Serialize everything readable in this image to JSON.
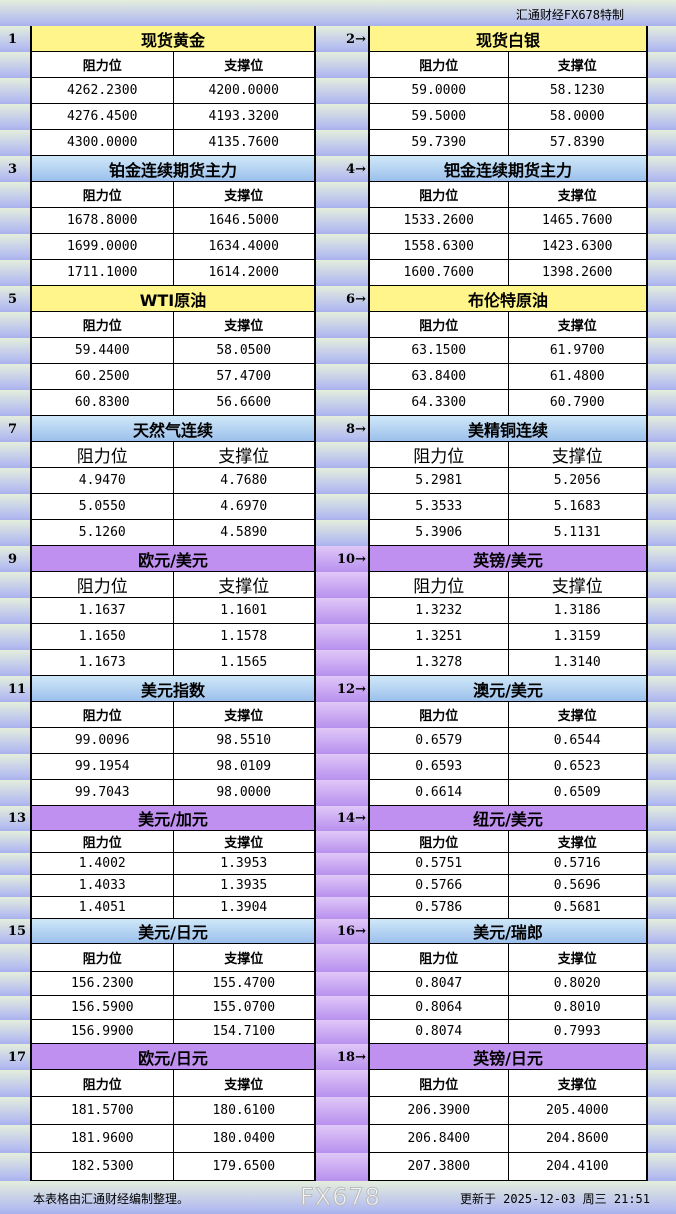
{
  "header": {
    "brand": "汇通财经FX678特制"
  },
  "labels": {
    "resistance": "阻力位",
    "support": "支撑位"
  },
  "sections": [
    {
      "color": "yellow",
      "left": {
        "num": "1",
        "title": "现货黄金",
        "rows": [
          [
            "4262.2300",
            "4200.0000"
          ],
          [
            "4276.4500",
            "4193.3200"
          ],
          [
            "4300.0000",
            "4135.7600"
          ]
        ]
      },
      "right": {
        "num": "2→",
        "title": "现货白银",
        "rows": [
          [
            "59.0000",
            "58.1230"
          ],
          [
            "59.5000",
            "58.0000"
          ],
          [
            "59.7390",
            "57.8390"
          ]
        ]
      }
    },
    {
      "color": "blue",
      "left": {
        "num": "3",
        "title": "铂金连续期货主力",
        "rows": [
          [
            "1678.8000",
            "1646.5000"
          ],
          [
            "1699.0000",
            "1634.4000"
          ],
          [
            "1711.1000",
            "1614.2000"
          ]
        ]
      },
      "right": {
        "num": "4→",
        "title": "钯金连续期货主力",
        "rows": [
          [
            "1533.2600",
            "1465.7600"
          ],
          [
            "1558.6300",
            "1423.6300"
          ],
          [
            "1600.7600",
            "1398.2600"
          ]
        ]
      }
    },
    {
      "color": "yellow",
      "left": {
        "num": "5",
        "title": "WTI原油",
        "rows": [
          [
            "59.4400",
            "58.0500"
          ],
          [
            "60.2500",
            "57.4700"
          ],
          [
            "60.8300",
            "56.6600"
          ]
        ]
      },
      "right": {
        "num": "6→",
        "title": "布伦特原油",
        "rows": [
          [
            "63.1500",
            "61.9700"
          ],
          [
            "63.8400",
            "61.4800"
          ],
          [
            "64.3300",
            "60.7900"
          ]
        ]
      }
    },
    {
      "color": "blue",
      "left": {
        "num": "7",
        "title": "天然气连续",
        "rows": [
          [
            "4.9470",
            "4.7680"
          ],
          [
            "5.0550",
            "4.6970"
          ],
          [
            "5.1260",
            "4.5890"
          ]
        ]
      },
      "right": {
        "num": "8→",
        "title": "美精铜连续",
        "rows": [
          [
            "5.2981",
            "5.2056"
          ],
          [
            "5.3533",
            "5.1683"
          ],
          [
            "5.3906",
            "5.1131"
          ]
        ]
      }
    },
    {
      "color": "purple",
      "left": {
        "num": "9",
        "title": "欧元/美元",
        "rows": [
          [
            "1.1637",
            "1.1601"
          ],
          [
            "1.1650",
            "1.1578"
          ],
          [
            "1.1673",
            "1.1565"
          ]
        ]
      },
      "right": {
        "num": "10→",
        "title": "英镑/美元",
        "rows": [
          [
            "1.3232",
            "1.3186"
          ],
          [
            "1.3251",
            "1.3159"
          ],
          [
            "1.3278",
            "1.3140"
          ]
        ]
      }
    },
    {
      "color": "blue",
      "left": {
        "num": "11",
        "title": "美元指数",
        "rows": [
          [
            "99.0096",
            "98.5510"
          ],
          [
            "99.1954",
            "98.0109"
          ],
          [
            "99.7043",
            "98.0000"
          ]
        ]
      },
      "right": {
        "num": "12→",
        "title": "澳元/美元",
        "rows": [
          [
            "0.6579",
            "0.6544"
          ],
          [
            "0.6593",
            "0.6523"
          ],
          [
            "0.6614",
            "0.6509"
          ]
        ]
      }
    },
    {
      "color": "purple",
      "left": {
        "num": "13",
        "title": "美元/加元",
        "rows": [
          [
            "1.4002",
            "1.3953"
          ],
          [
            "1.4033",
            "1.3935"
          ],
          [
            "1.4051",
            "1.3904"
          ]
        ]
      },
      "right": {
        "num": "14→",
        "title": "纽元/美元",
        "rows": [
          [
            "0.5751",
            "0.5716"
          ],
          [
            "0.5766",
            "0.5696"
          ],
          [
            "0.5786",
            "0.5681"
          ]
        ]
      }
    },
    {
      "color": "blue",
      "left": {
        "num": "15",
        "title": "美元/日元",
        "rows": [
          [
            "156.2300",
            "155.4700"
          ],
          [
            "156.5900",
            "155.0700"
          ],
          [
            "156.9900",
            "154.7100"
          ]
        ]
      },
      "right": {
        "num": "16→",
        "title": "美元/瑞郎",
        "rows": [
          [
            "0.8047",
            "0.8020"
          ],
          [
            "0.8064",
            "0.8010"
          ],
          [
            "0.8074",
            "0.7993"
          ]
        ]
      }
    },
    {
      "color": "purple",
      "left": {
        "num": "17",
        "title": "欧元/日元",
        "rows": [
          [
            "181.5700",
            "180.6100"
          ],
          [
            "181.9600",
            "180.0400"
          ],
          [
            "182.5300",
            "179.6500"
          ]
        ]
      },
      "right": {
        "num": "18→",
        "title": "英镑/日元",
        "rows": [
          [
            "206.3900",
            "205.4000"
          ],
          [
            "206.8400",
            "204.8600"
          ],
          [
            "207.3800",
            "204.4100"
          ]
        ]
      }
    }
  ],
  "footer": {
    "note": "本表格由汇通财经编制整理。",
    "updated": "更新于 2025-12-03 周三 21:51"
  },
  "watermark": "FX678"
}
